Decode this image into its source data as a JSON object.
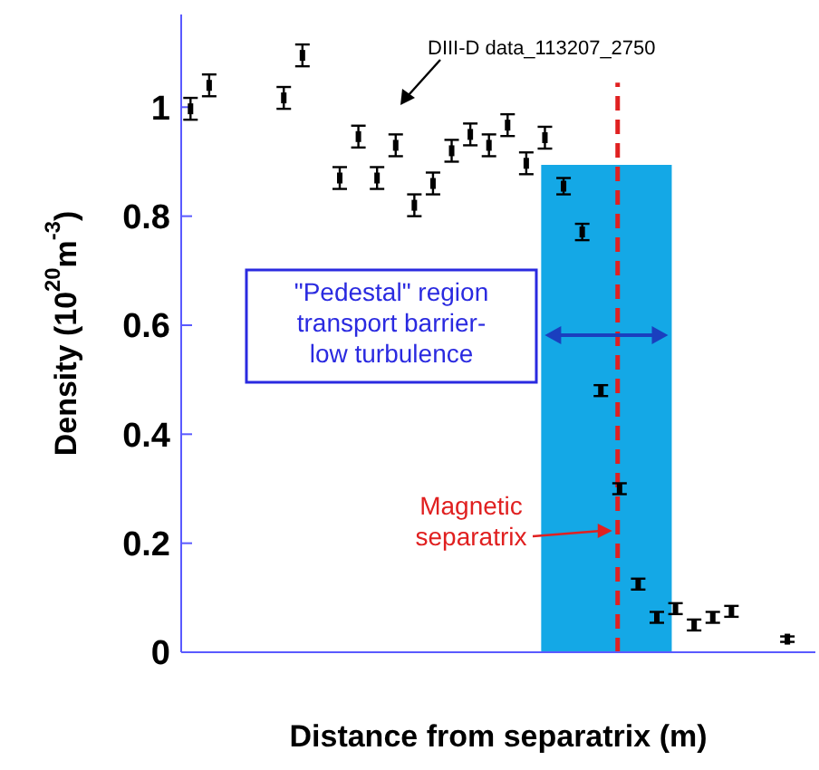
{
  "chart_data": {
    "type": "scatter",
    "xlabel": "Distance from separatrix (m)",
    "ylabel": "Density (10$^{20}$m$^{-3}$)",
    "categories": [
      null,
      null,
      null,
      null,
      null,
      null,
      null,
      null,
      null,
      null,
      null,
      null,
      null,
      null,
      null,
      null,
      null,
      null,
      null,
      null,
      null,
      null,
      null,
      null,
      null,
      null,
      null,
      null,
      null,
      null,
      null,
      null,
      null,
      null
    ],
    "series": [
      {
        "color": "#000000",
        "values": [
          0.997,
          1.04,
          null,
          null,
          null,
          1.017,
          1.095,
          null,
          0.87,
          0.946,
          0.87,
          0.93,
          0.82,
          0.86,
          0.92,
          0.95,
          0.93,
          0.967,
          0.897,
          0.944,
          0.855,
          0.771,
          0.48,
          0.3,
          0.125,
          0.064,
          0.08,
          0.05,
          0.064,
          0.075,
          null,
          null,
          0.024,
          null
        ],
        "errors": [
          0.02,
          0.02,
          null,
          null,
          null,
          0.02,
          0.02,
          null,
          0.02,
          0.02,
          0.02,
          0.02,
          0.02,
          0.02,
          0.02,
          0.02,
          0.02,
          0.02,
          0.02,
          0.02,
          0.015,
          0.015,
          0.01,
          0.01,
          0.01,
          0.01,
          0.01,
          0.01,
          0.01,
          0.01,
          null,
          null,
          0.005,
          null
        ]
      }
    ],
    "ylim": [
      0,
      1.17
    ],
    "yticks": [
      0,
      0.2,
      0.4,
      0.6,
      0.8,
      1
    ],
    "tick_labels": "y",
    "marker": "square",
    "annotations": [
      "DIII-D data_113207_2750",
      "\"Pedestal\" region\ntransport barrier-\nlow turbulence",
      "Magnetic\nseparatrix"
    ]
  }
}
